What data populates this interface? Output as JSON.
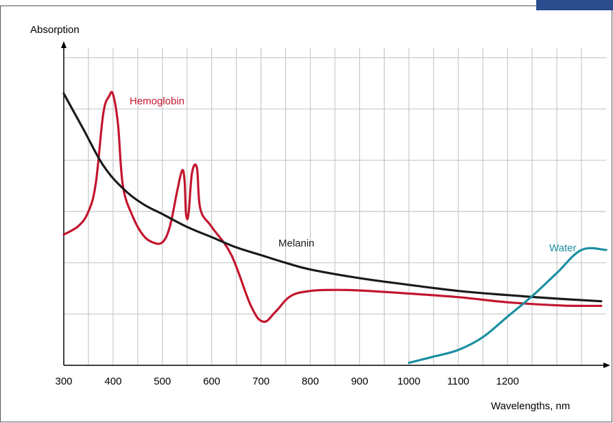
{
  "chart_data": {
    "type": "line",
    "title": "",
    "xlabel": "Wavelengths, nm",
    "ylabel": "Absorption",
    "xlim": [
      300,
      1400
    ],
    "x_ticks": [
      300,
      400,
      500,
      600,
      700,
      800,
      900,
      1000,
      1100,
      1200
    ],
    "y_gridlines": 6,
    "grid": true,
    "y_tick_labels": false,
    "series": [
      {
        "name": "Hemoglobin",
        "color": "#c3162e",
        "points": [
          [
            300,
            2.55
          ],
          [
            330,
            2.72
          ],
          [
            350,
            3.0
          ],
          [
            365,
            3.55
          ],
          [
            380,
            4.9
          ],
          [
            392,
            5.25
          ],
          [
            400,
            5.28
          ],
          [
            410,
            4.7
          ],
          [
            420,
            3.5
          ],
          [
            440,
            2.9
          ],
          [
            460,
            2.55
          ],
          [
            480,
            2.4
          ],
          [
            500,
            2.4
          ],
          [
            515,
            2.7
          ],
          [
            530,
            3.4
          ],
          [
            540,
            3.8
          ],
          [
            545,
            3.6
          ],
          [
            548,
            2.95
          ],
          [
            553,
            2.95
          ],
          [
            560,
            3.75
          ],
          [
            570,
            3.85
          ],
          [
            577,
            3.05
          ],
          [
            600,
            2.7
          ],
          [
            640,
            2.15
          ],
          [
            680,
            1.15
          ],
          [
            705,
            0.85
          ],
          [
            730,
            1.05
          ],
          [
            760,
            1.35
          ],
          [
            800,
            1.45
          ],
          [
            850,
            1.47
          ],
          [
            900,
            1.46
          ],
          [
            1000,
            1.4
          ],
          [
            1100,
            1.33
          ],
          [
            1200,
            1.23
          ],
          [
            1300,
            1.17
          ],
          [
            1350,
            1.16
          ],
          [
            1390,
            1.16
          ]
        ]
      },
      {
        "name": "Melanin",
        "color": "#1a1a1a",
        "points": [
          [
            300,
            5.3
          ],
          [
            340,
            4.6
          ],
          [
            380,
            3.9
          ],
          [
            420,
            3.45
          ],
          [
            460,
            3.15
          ],
          [
            500,
            2.95
          ],
          [
            550,
            2.7
          ],
          [
            600,
            2.5
          ],
          [
            650,
            2.3
          ],
          [
            700,
            2.15
          ],
          [
            750,
            2.0
          ],
          [
            800,
            1.87
          ],
          [
            900,
            1.7
          ],
          [
            1000,
            1.57
          ],
          [
            1100,
            1.45
          ],
          [
            1200,
            1.37
          ],
          [
            1300,
            1.3
          ],
          [
            1390,
            1.25
          ]
        ]
      },
      {
        "name": "Water",
        "color": "#1a8fa0",
        "points": [
          [
            1000,
            0.05
          ],
          [
            1050,
            0.17
          ],
          [
            1100,
            0.3
          ],
          [
            1150,
            0.55
          ],
          [
            1200,
            0.95
          ],
          [
            1250,
            1.35
          ],
          [
            1300,
            1.8
          ],
          [
            1350,
            2.25
          ],
          [
            1400,
            2.25
          ]
        ]
      }
    ]
  }
}
